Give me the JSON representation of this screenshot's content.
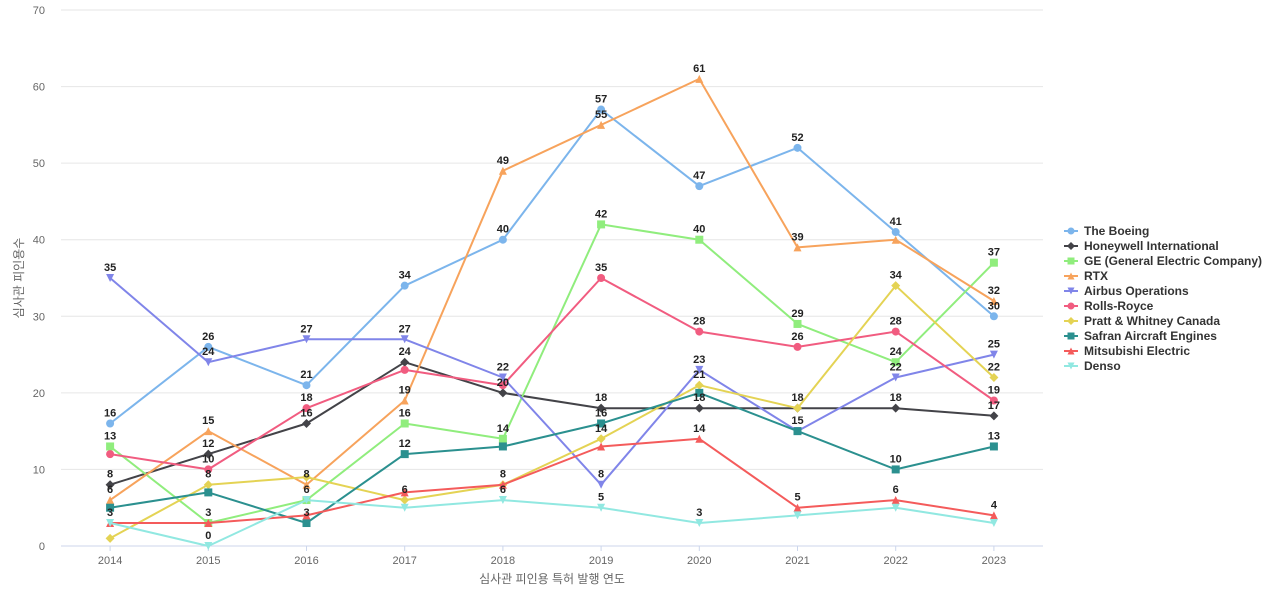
{
  "chart_data": {
    "type": "line",
    "xlabel": "심사관 피인용 특허 발행 연도",
    "ylabel": "심사관 피인용수",
    "ylim": [
      0,
      70
    ],
    "yticks": [
      0,
      10,
      20,
      30,
      40,
      50,
      60,
      70
    ],
    "grid": true,
    "legend_position": "right",
    "x": [
      "2014",
      "2015",
      "2016",
      "2017",
      "2018",
      "2019",
      "2020",
      "2021",
      "2022",
      "2023"
    ],
    "series": [
      {
        "name": "The Boeing",
        "color": "#7cb5ec",
        "marker": "circle",
        "values": [
          16,
          26,
          21,
          34,
          40,
          57,
          47,
          52,
          41,
          30
        ]
      },
      {
        "name": "Honeywell International",
        "color": "#434348",
        "marker": "diamond",
        "values": [
          8,
          12,
          16,
          24,
          20,
          18,
          18,
          18,
          18,
          17
        ]
      },
      {
        "name": "GE (General Electric Company)",
        "color": "#90ed7d",
        "marker": "square",
        "values": [
          13,
          3,
          6,
          16,
          14,
          42,
          40,
          29,
          24,
          37
        ]
      },
      {
        "name": "RTX",
        "color": "#f7a35c",
        "marker": "triangle",
        "values": [
          6,
          15,
          8,
          19,
          49,
          55,
          61,
          39,
          40,
          32
        ]
      },
      {
        "name": "Airbus Operations",
        "color": "#8085e9",
        "marker": "triangle-down",
        "values": [
          35,
          24,
          27,
          27,
          22,
          8,
          23,
          15,
          22,
          25
        ]
      },
      {
        "name": "Rolls-Royce",
        "color": "#f15c80",
        "marker": "circle",
        "values": [
          12,
          10,
          18,
          23,
          21,
          35,
          28,
          26,
          28,
          19
        ]
      },
      {
        "name": "Pratt & Whitney Canada",
        "color": "#e4d354",
        "marker": "diamond",
        "values": [
          1,
          8,
          9,
          6,
          8,
          14,
          21,
          18,
          34,
          22
        ]
      },
      {
        "name": "Safran Aircraft Engines",
        "color": "#2b908f",
        "marker": "square",
        "values": [
          5,
          7,
          3,
          12,
          13,
          16,
          20,
          15,
          10,
          13
        ]
      },
      {
        "name": "Mitsubishi Electric",
        "color": "#f45b5b",
        "marker": "triangle",
        "values": [
          3,
          3,
          4,
          7,
          8,
          13,
          14,
          5,
          6,
          4
        ]
      },
      {
        "name": "Denso",
        "color": "#91e8e1",
        "marker": "triangle-down",
        "values": [
          3,
          0,
          6,
          5,
          6,
          5,
          3,
          4,
          5,
          3
        ]
      }
    ],
    "data_labels": [
      {
        "x": "2014",
        "values": [
          16,
          8,
          13,
          6,
          35,
          3
        ]
      },
      {
        "x": "2015",
        "values": [
          26,
          24,
          12,
          10,
          8,
          15,
          3,
          0
        ]
      },
      {
        "x": "2016",
        "values": [
          21,
          27,
          18,
          16,
          8,
          6,
          3
        ]
      },
      {
        "x": "2017",
        "values": [
          34,
          27,
          24,
          19,
          16,
          12,
          6
        ]
      },
      {
        "x": "2018",
        "values": [
          40,
          49,
          22,
          20,
          14,
          8,
          6
        ]
      },
      {
        "x": "2019",
        "values": [
          57,
          55,
          42,
          35,
          18,
          16,
          14,
          8,
          5
        ]
      },
      {
        "x": "2020",
        "values": [
          61,
          47,
          40,
          28,
          23,
          21,
          18,
          14,
          3
        ]
      },
      {
        "x": "2021",
        "values": [
          52,
          39,
          29,
          26,
          18,
          15,
          5
        ]
      },
      {
        "x": "2022",
        "values": [
          41,
          34,
          28,
          24,
          22,
          18,
          10,
          6
        ]
      },
      {
        "x": "2023",
        "values": [
          37,
          32,
          30,
          25,
          22,
          19,
          17,
          13,
          4
        ]
      }
    ]
  }
}
